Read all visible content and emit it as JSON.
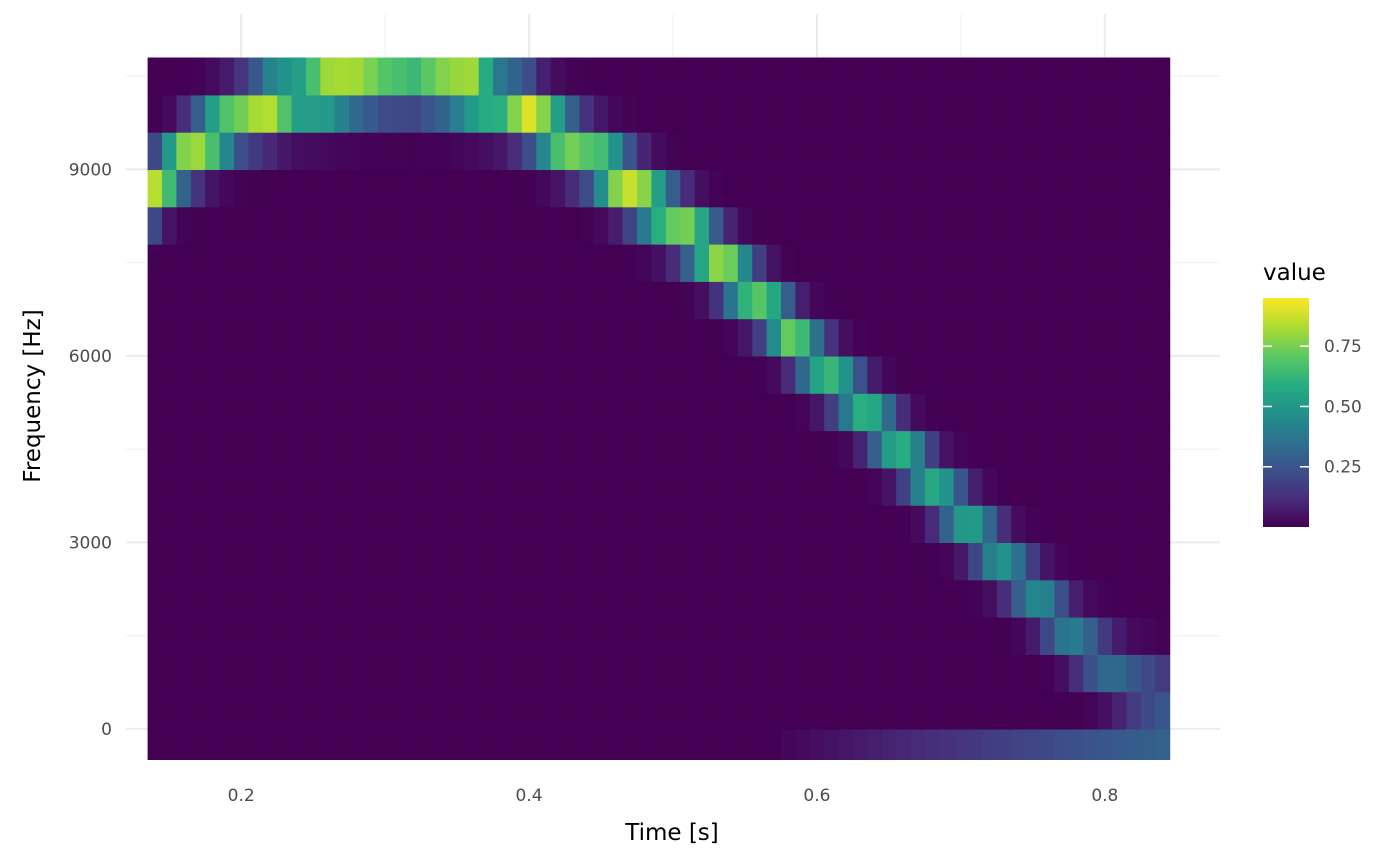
{
  "chart_data": {
    "type": "heatmap",
    "xlabel": "Time [s]",
    "ylabel": "Frequency [Hz]",
    "xlim": [
      0.12,
      0.88
    ],
    "ylim": [
      -500,
      11500
    ],
    "x_ticks": [
      0.2,
      0.4,
      0.6,
      0.8
    ],
    "x_tick_labels": [
      "0.2",
      "0.4",
      "0.6",
      "0.8"
    ],
    "y_ticks": [
      0,
      3000,
      6000,
      9000
    ],
    "y_tick_labels": [
      "0",
      "3000",
      "6000",
      "9000"
    ],
    "grid": true,
    "colormap": "viridis",
    "legend": {
      "title": "value",
      "position": "right",
      "range": [
        0,
        0.95
      ],
      "breaks": [
        0.25,
        0.5,
        0.75
      ],
      "break_labels": [
        "0.25",
        "0.50",
        "0.75"
      ]
    },
    "cells": {
      "x_start": 0.14,
      "x_step": 0.01,
      "x_count": 71,
      "y_start": -300,
      "y_step": 600,
      "y_count": 19,
      "background_value": 0.0,
      "ridge": [
        {
          "x": 0.14,
          "y": 8700,
          "v": 0.85
        },
        {
          "x": 0.16,
          "y": 9200,
          "v": 0.8
        },
        {
          "x": 0.18,
          "y": 9550,
          "v": 0.85
        },
        {
          "x": 0.2,
          "y": 9850,
          "v": 0.75
        },
        {
          "x": 0.22,
          "y": 10050,
          "v": 0.92
        },
        {
          "x": 0.24,
          "y": 10200,
          "v": 0.75
        },
        {
          "x": 0.26,
          "y": 10300,
          "v": 0.95
        },
        {
          "x": 0.28,
          "y": 10400,
          "v": 0.85
        },
        {
          "x": 0.3,
          "y": 10450,
          "v": 0.7
        },
        {
          "x": 0.32,
          "y": 10450,
          "v": 0.65
        },
        {
          "x": 0.34,
          "y": 10400,
          "v": 0.8
        },
        {
          "x": 0.36,
          "y": 10300,
          "v": 0.95
        },
        {
          "x": 0.38,
          "y": 10100,
          "v": 0.7
        },
        {
          "x": 0.4,
          "y": 9900,
          "v": 0.9
        },
        {
          "x": 0.42,
          "y": 9550,
          "v": 0.85
        },
        {
          "x": 0.44,
          "y": 9250,
          "v": 0.7
        },
        {
          "x": 0.46,
          "y": 8900,
          "v": 0.9
        },
        {
          "x": 0.48,
          "y": 8550,
          "v": 0.85
        },
        {
          "x": 0.5,
          "y": 8200,
          "v": 0.75
        },
        {
          "x": 0.52,
          "y": 7800,
          "v": 0.8
        },
        {
          "x": 0.54,
          "y": 7350,
          "v": 0.8
        },
        {
          "x": 0.56,
          "y": 6900,
          "v": 0.7
        },
        {
          "x": 0.58,
          "y": 6400,
          "v": 0.75
        },
        {
          "x": 0.6,
          "y": 5900,
          "v": 0.65
        },
        {
          "x": 0.62,
          "y": 5450,
          "v": 0.62
        },
        {
          "x": 0.64,
          "y": 4950,
          "v": 0.62
        },
        {
          "x": 0.66,
          "y": 4450,
          "v": 0.6
        },
        {
          "x": 0.68,
          "y": 3950,
          "v": 0.58
        },
        {
          "x": 0.7,
          "y": 3450,
          "v": 0.55
        },
        {
          "x": 0.72,
          "y": 2950,
          "v": 0.52
        },
        {
          "x": 0.74,
          "y": 2450,
          "v": 0.45
        },
        {
          "x": 0.76,
          "y": 1950,
          "v": 0.45
        },
        {
          "x": 0.78,
          "y": 1450,
          "v": 0.4
        },
        {
          "x": 0.8,
          "y": 1050,
          "v": 0.35
        },
        {
          "x": 0.82,
          "y": 700,
          "v": 0.3
        },
        {
          "x": 0.84,
          "y": 500,
          "v": 0.3
        }
      ]
    }
  }
}
